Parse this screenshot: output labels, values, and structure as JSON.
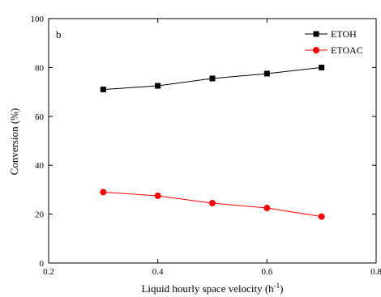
{
  "chart_data": {
    "type": "line",
    "panel_label": "b",
    "xlabel_main": "Liquid hourly space velocity (h",
    "xlabel_sup": "-1",
    "xlabel_end": ")",
    "ylabel": "Conversion (%)",
    "xlim": [
      0.2,
      0.8
    ],
    "ylim": [
      0,
      100
    ],
    "x_ticks": [
      0.2,
      0.4,
      0.6,
      0.8
    ],
    "x_tick_labels": [
      "0.2",
      "0.4",
      "0.6",
      "0.8"
    ],
    "y_ticks": [
      0,
      20,
      40,
      60,
      80,
      100
    ],
    "y_tick_labels": [
      "0",
      "20",
      "40",
      "60",
      "80",
      "100"
    ],
    "legend_position": "top-right",
    "series": [
      {
        "name": "ETOH",
        "marker": "square",
        "color": "#000000",
        "x": [
          0.3,
          0.4,
          0.5,
          0.6,
          0.7
        ],
        "y": [
          71,
          72.5,
          75.5,
          77.5,
          80
        ]
      },
      {
        "name": "ETOAC",
        "marker": "circle",
        "color": "#ff0000",
        "x": [
          0.3,
          0.4,
          0.5,
          0.6,
          0.7
        ],
        "y": [
          29,
          27.5,
          24.5,
          22.5,
          19
        ]
      }
    ]
  }
}
